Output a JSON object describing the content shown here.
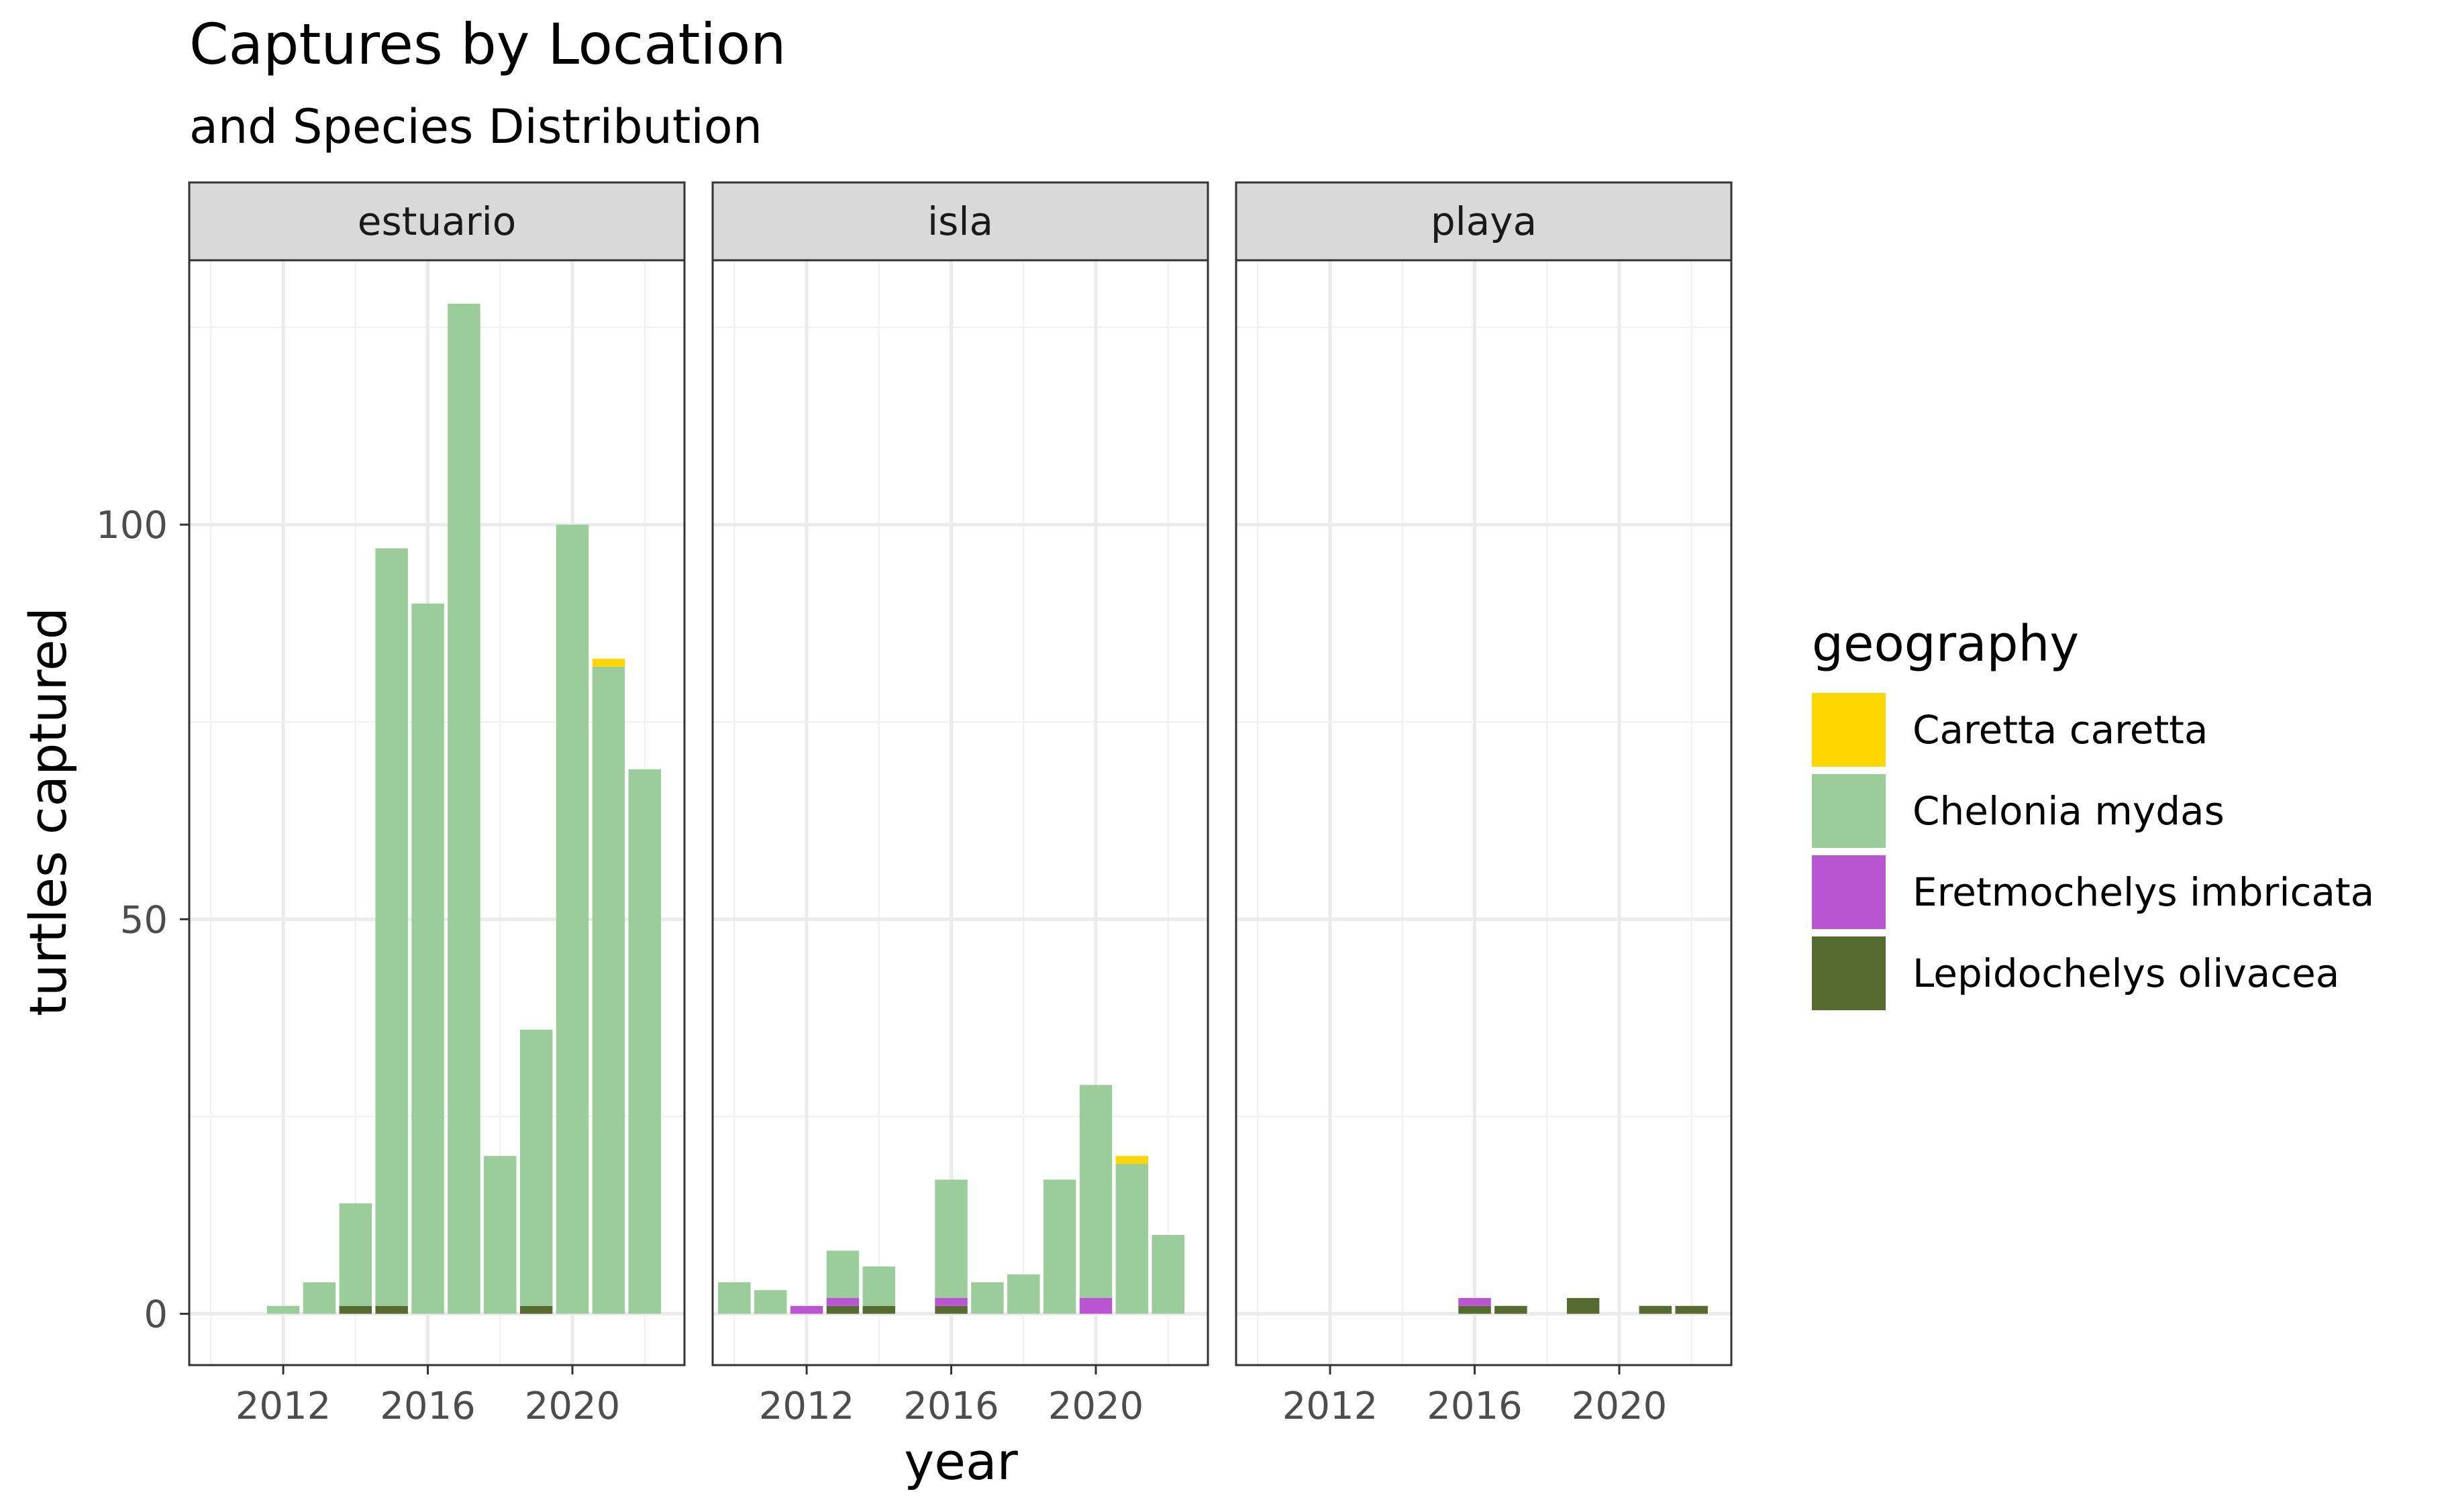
{
  "chart_data": {
    "type": "bar",
    "stacked": true,
    "title": "Captures by Location",
    "subtitle": "and Species Distribution",
    "xlabel": "year",
    "ylabel": "turtles captured",
    "x_ticks": [
      2012,
      2016,
      2020
    ],
    "y_ticks": [
      0,
      50,
      100
    ],
    "xlim": [
      2009.4,
      2023.1
    ],
    "ylim": [
      -6.5,
      133.5
    ],
    "grid": true,
    "legend": {
      "title": "geography",
      "position": "right",
      "entries": [
        {
          "name": "Caretta caretta",
          "color": "#FFD700"
        },
        {
          "name": "Chelonia mydas",
          "color": "#9ACD99"
        },
        {
          "name": "Eretmochelys imbricata",
          "color": "#BA55D3"
        },
        {
          "name": "Lepidochelys olivacea",
          "color": "#556B2F"
        }
      ]
    },
    "stack_order": [
      "Lepidochelys olivacea",
      "Eretmochelys imbricata",
      "Chelonia mydas",
      "Caretta caretta"
    ],
    "panels": [
      {
        "label": "estuario",
        "bars": [
          {
            "year": 2012,
            "Chelonia mydas": 1
          },
          {
            "year": 2013,
            "Chelonia mydas": 4
          },
          {
            "year": 2014,
            "Lepidochelys olivacea": 1,
            "Chelonia mydas": 13
          },
          {
            "year": 2015,
            "Lepidochelys olivacea": 1,
            "Chelonia mydas": 96
          },
          {
            "year": 2016,
            "Chelonia mydas": 90
          },
          {
            "year": 2017,
            "Chelonia mydas": 128
          },
          {
            "year": 2018,
            "Chelonia mydas": 20
          },
          {
            "year": 2019,
            "Lepidochelys olivacea": 1,
            "Chelonia mydas": 35
          },
          {
            "year": 2020,
            "Chelonia mydas": 100
          },
          {
            "year": 2021,
            "Chelonia mydas": 82,
            "Caretta caretta": 1
          },
          {
            "year": 2022,
            "Chelonia mydas": 69
          }
        ]
      },
      {
        "label": "isla",
        "bars": [
          {
            "year": 2010,
            "Chelonia mydas": 4
          },
          {
            "year": 2011,
            "Chelonia mydas": 3
          },
          {
            "year": 2012,
            "Eretmochelys imbricata": 1
          },
          {
            "year": 2013,
            "Lepidochelys olivacea": 1,
            "Eretmochelys imbricata": 1,
            "Chelonia mydas": 6
          },
          {
            "year": 2014,
            "Lepidochelys olivacea": 1,
            "Chelonia mydas": 5
          },
          {
            "year": 2016,
            "Lepidochelys olivacea": 1,
            "Eretmochelys imbricata": 1,
            "Chelonia mydas": 15
          },
          {
            "year": 2017,
            "Chelonia mydas": 4
          },
          {
            "year": 2018,
            "Chelonia mydas": 5
          },
          {
            "year": 2019,
            "Chelonia mydas": 17
          },
          {
            "year": 2020,
            "Eretmochelys imbricata": 2,
            "Chelonia mydas": 27
          },
          {
            "year": 2021,
            "Chelonia mydas": 19,
            "Caretta caretta": 1
          },
          {
            "year": 2022,
            "Chelonia mydas": 10
          }
        ]
      },
      {
        "label": "playa",
        "bars": [
          {
            "year": 2016,
            "Lepidochelys olivacea": 1,
            "Eretmochelys imbricata": 1
          },
          {
            "year": 2017,
            "Lepidochelys olivacea": 1
          },
          {
            "year": 2019,
            "Lepidochelys olivacea": 2
          },
          {
            "year": 2021,
            "Lepidochelys olivacea": 1
          },
          {
            "year": 2022,
            "Lepidochelys olivacea": 1
          }
        ]
      }
    ]
  }
}
